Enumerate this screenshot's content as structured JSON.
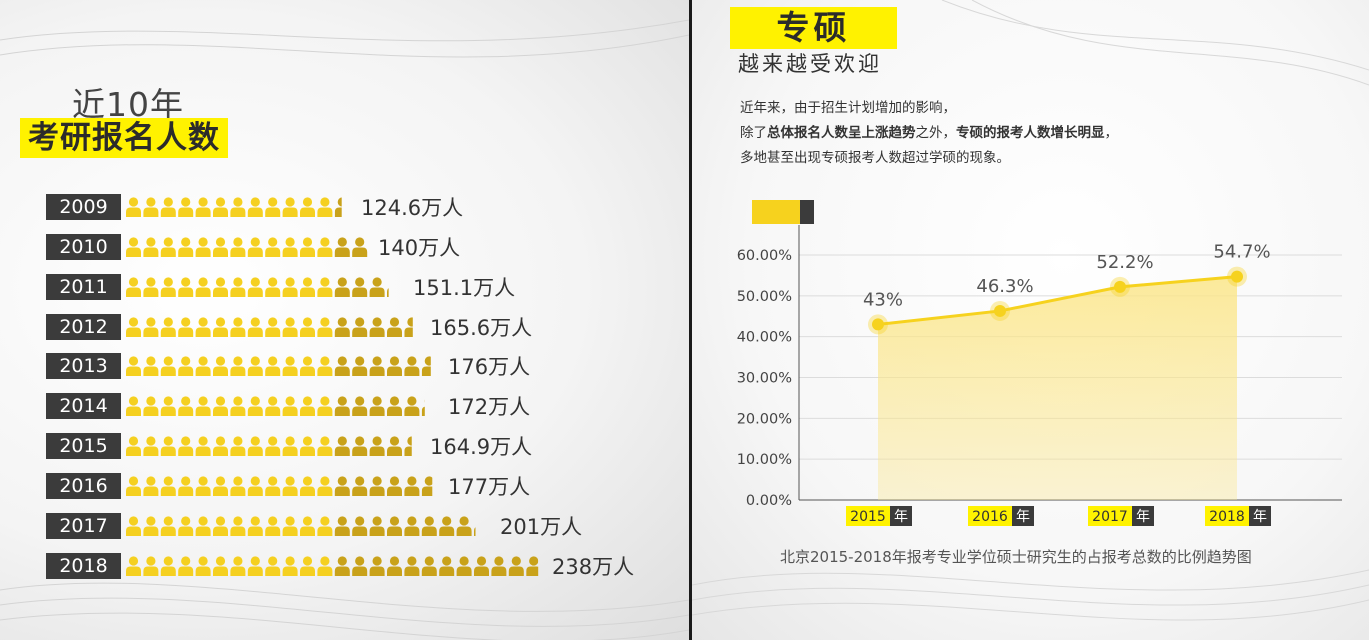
{
  "left": {
    "title_top": "近10年",
    "title_main": "考研报名人数",
    "rows": [
      {
        "year": "2009",
        "value": 124.6,
        "label": "124.6万人"
      },
      {
        "year": "2010",
        "value": 140,
        "label": "140万人"
      },
      {
        "year": "2011",
        "value": 151.1,
        "label": "151.1万人"
      },
      {
        "year": "2012",
        "value": 165.6,
        "label": "165.6万人"
      },
      {
        "year": "2013",
        "value": 176,
        "label": "176万人"
      },
      {
        "year": "2014",
        "value": 172,
        "label": "172万人"
      },
      {
        "year": "2015",
        "value": 164.9,
        "label": "164.9万人"
      },
      {
        "year": "2016",
        "value": 177,
        "label": "177万人"
      },
      {
        "year": "2017",
        "value": 201,
        "label": "201万人"
      },
      {
        "year": "2018",
        "value": 238,
        "label": "238万人"
      }
    ]
  },
  "right": {
    "title": "专硕",
    "subtitle": "越来越受欢迎",
    "desc_line1": "近年来，由于招生计划增加的影响，",
    "desc_line2_a": "除了",
    "desc_line2_b": "总体报名人数呈上涨趋势",
    "desc_line2_c": "之外，",
    "desc_line2_d": "专硕的报考人数增长明显",
    "desc_line2_e": "，",
    "desc_line3": "多地甚至出现专硕报考人数超过学硕的现象。",
    "caption": "北京2015-2018年报考专业学位硕士研究生的占报考总数的比例趋势图",
    "year_suffix": "年"
  },
  "colors": {
    "yellow": "#fff200",
    "person_light": "#f5d020",
    "person_dark": "#c9a21a",
    "dark": "#3b3b3b",
    "area_fill": "#fbe68a",
    "line": "#f6d21e"
  },
  "chart_data": {
    "type": "area",
    "title": "北京2015-2018年报考专业学位硕士研究生的占报考总数的比例趋势图",
    "categories": [
      "2015",
      "2016",
      "2017",
      "2018"
    ],
    "values": [
      43,
      46.3,
      52.2,
      54.7
    ],
    "data_labels": [
      "43%",
      "46.3%",
      "52.2%",
      "54.7%"
    ],
    "ylim": [
      0,
      60
    ],
    "yticks": [
      "0.00%",
      "10.00%",
      "20.00%",
      "30.00%",
      "40.00%",
      "50.00%",
      "60.00%"
    ],
    "grid": true,
    "legend": false
  }
}
